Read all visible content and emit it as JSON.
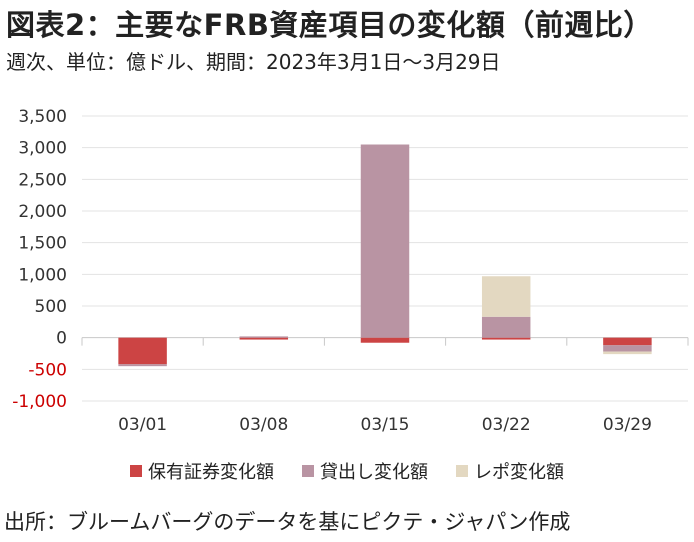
{
  "header": {
    "title": "図表2：主要なFRB資産項目の変化額（前週比）",
    "subtitle": "週次、単位：億ドル、期間：2023年3月1日～3月29日"
  },
  "footer": {
    "source": "出所：ブルームバーグのデータを基にピクテ・ジャパン作成"
  },
  "chart_data": {
    "type": "bar",
    "stacked": true,
    "categories": [
      "03/01",
      "03/08",
      "03/15",
      "03/22",
      "03/29"
    ],
    "series": [
      {
        "name": "保有証券変化額",
        "color": "#cc4444",
        "values": [
          -420,
          -30,
          -80,
          -30,
          -120
        ]
      },
      {
        "name": "貸出し変化額",
        "color": "#b994a3",
        "values": [
          -30,
          20,
          3050,
          330,
          -100
        ]
      },
      {
        "name": "レポ変化額",
        "color": "#e3d8c1",
        "values": [
          0,
          0,
          0,
          640,
          -40
        ]
      }
    ],
    "ylim": [
      -1000,
      3500
    ],
    "yticks": [
      3500,
      3000,
      2500,
      2000,
      1500,
      1000,
      500,
      0,
      -500,
      -1000
    ],
    "ytick_labels": [
      "3,500",
      "3,000",
      "2,500",
      "2,000",
      "1,500",
      "1,000",
      "500",
      "0",
      "-500",
      "-1,000"
    ],
    "negative_tick_color": "#cc0000",
    "grid": true,
    "legend_position": "bottom"
  }
}
